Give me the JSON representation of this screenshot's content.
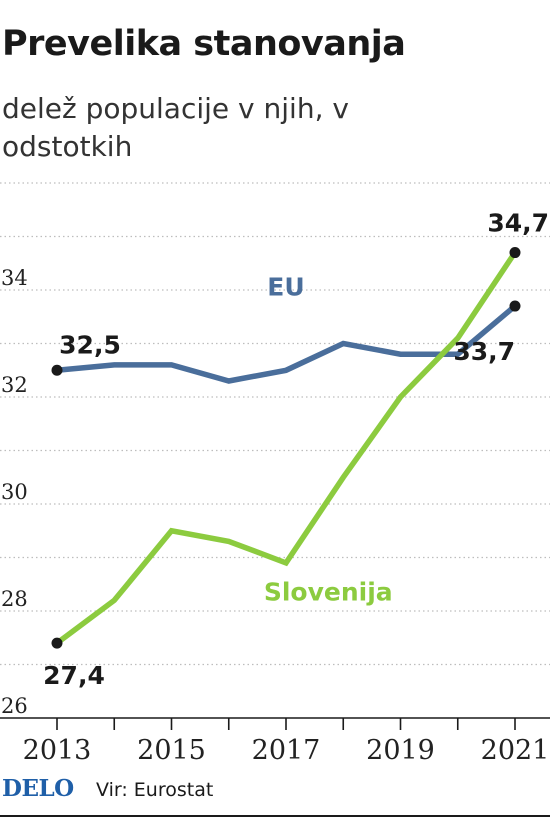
{
  "title": "Prevelika stanovanja",
  "subtitle": "delež populacije v njih, v odstotkih",
  "colors": {
    "eu": "#4a6e9b",
    "slovenia": "#8ccb3f",
    "dot": "#1a1a1a"
  },
  "footer": {
    "logo": "DELO",
    "source": "Vir: Eurostat"
  },
  "chart_data": {
    "type": "line",
    "title": "Prevelika stanovanja",
    "subtitle": "delež populacije v njih, v odstotkih",
    "x": [
      2013,
      2014,
      2015,
      2016,
      2017,
      2018,
      2019,
      2020,
      2021
    ],
    "xticks": [
      2013,
      2015,
      2017,
      2019,
      2021
    ],
    "xtick_labels": [
      "2013",
      "2015",
      "2017",
      "2019",
      "2021"
    ],
    "yticks": [
      26,
      28,
      30,
      32,
      34
    ],
    "ytick_labels": [
      "26",
      "28",
      "30",
      "32",
      "34"
    ],
    "ylim": [
      26,
      36
    ],
    "grid": true,
    "series": [
      {
        "name": "EU",
        "color": "#4a6e9b",
        "values": [
          32.5,
          32.6,
          32.6,
          32.3,
          32.5,
          33.0,
          32.8,
          32.8,
          33.7
        ]
      },
      {
        "name": "Slovenija",
        "color": "#8ccb3f",
        "values": [
          27.4,
          28.2,
          29.5,
          29.3,
          28.9,
          30.5,
          32.0,
          33.1,
          34.7
        ]
      }
    ],
    "data_labels": [
      {
        "series": "EU",
        "x": 2013,
        "text": "32,5"
      },
      {
        "series": "EU",
        "x": 2021,
        "text": "33,7"
      },
      {
        "series": "Slovenija",
        "x": 2013,
        "text": "27,4"
      },
      {
        "series": "Slovenija",
        "x": 2021,
        "text": "34,7"
      }
    ]
  }
}
